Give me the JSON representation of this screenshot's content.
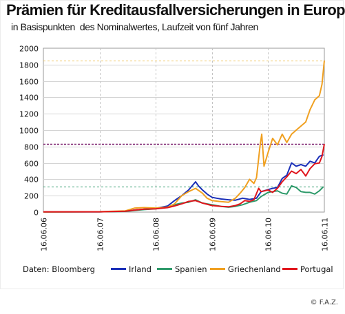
{
  "title": "Prämien für Kreditausfallversicherungen in Europa",
  "subtitle": "in Basispunkten  des Nominalwertes, Laufzeit von fünf Jahren",
  "source": "Daten: Bloomberg",
  "copyright": "© F.A.Z.",
  "chart_data": {
    "type": "line",
    "title": "Prämien für Kreditausfallversicherungen in Europa",
    "subtitle": "in Basispunkten  des Nominalwertes, Laufzeit von fünf Jahren",
    "xlabel": "",
    "ylabel": "",
    "xlim": [
      "2006-06-16",
      "2011-06-16"
    ],
    "ylim": [
      0,
      2000
    ],
    "y_ticks": [
      0,
      200,
      400,
      600,
      800,
      1000,
      1200,
      1400,
      1600,
      1800,
      2000
    ],
    "y_tick_labels": [
      "0",
      "200",
      "400",
      "600",
      "800",
      "1000",
      "1200",
      "1400",
      "1600",
      "1800",
      "2000"
    ],
    "x_ticks": [
      "2006-06-16",
      "2007-06-16",
      "2008-06-16",
      "2009-06-16",
      "2010-06-16",
      "2011-06-16"
    ],
    "x_tick_labels": [
      "16.06.06",
      "16.06.07",
      "16.06.08",
      "16.06.09",
      "16.06.10",
      "16.06.11"
    ],
    "grid": true,
    "legend_position": "bottom",
    "reference_lines": [
      {
        "value": 1850,
        "color": "#f0c45a"
      },
      {
        "value": 830,
        "color": "#7a1f6e"
      },
      {
        "value": 310,
        "color": "#2e9a6a"
      }
    ],
    "series": [
      {
        "name": "Irland",
        "color": "#1a2fb8",
        "points": [
          [
            "2006-06-16",
            2
          ],
          [
            "2007-06-16",
            3
          ],
          [
            "2007-12-01",
            10
          ],
          [
            "2008-02-01",
            25
          ],
          [
            "2008-04-01",
            35
          ],
          [
            "2008-06-16",
            45
          ],
          [
            "2008-09-01",
            75
          ],
          [
            "2008-10-15",
            140
          ],
          [
            "2008-12-01",
            200
          ],
          [
            "2009-01-15",
            270
          ],
          [
            "2009-03-01",
            370
          ],
          [
            "2009-03-20",
            320
          ],
          [
            "2009-04-15",
            270
          ],
          [
            "2009-05-15",
            220
          ],
          [
            "2009-06-16",
            180
          ],
          [
            "2009-07-15",
            170
          ],
          [
            "2009-08-15",
            160
          ],
          [
            "2009-10-01",
            150
          ],
          [
            "2009-11-15",
            145
          ],
          [
            "2010-01-01",
            170
          ],
          [
            "2010-02-15",
            155
          ],
          [
            "2010-04-01",
            170
          ],
          [
            "2010-05-01",
            250
          ],
          [
            "2010-06-16",
            275
          ],
          [
            "2010-07-15",
            290
          ],
          [
            "2010-08-15",
            300
          ],
          [
            "2010-09-15",
            410
          ],
          [
            "2010-10-15",
            450
          ],
          [
            "2010-11-15",
            600
          ],
          [
            "2010-12-15",
            560
          ],
          [
            "2011-01-15",
            580
          ],
          [
            "2011-02-15",
            560
          ],
          [
            "2011-03-15",
            620
          ],
          [
            "2011-04-15",
            600
          ],
          [
            "2011-05-15",
            680
          ],
          [
            "2011-06-10",
            700
          ]
        ]
      },
      {
        "name": "Spanien",
        "color": "#2e9a6a",
        "points": [
          [
            "2006-06-16",
            2
          ],
          [
            "2007-06-16",
            3
          ],
          [
            "2007-12-01",
            8
          ],
          [
            "2008-02-01",
            20
          ],
          [
            "2008-04-01",
            30
          ],
          [
            "2008-06-16",
            40
          ],
          [
            "2008-09-01",
            60
          ],
          [
            "2008-10-15",
            90
          ],
          [
            "2008-12-01",
            110
          ],
          [
            "2009-01-15",
            120
          ],
          [
            "2009-03-01",
            150
          ],
          [
            "2009-04-15",
            110
          ],
          [
            "2009-06-16",
            90
          ],
          [
            "2009-08-15",
            70
          ],
          [
            "2009-10-01",
            60
          ],
          [
            "2009-11-15",
            70
          ],
          [
            "2010-01-01",
            90
          ],
          [
            "2010-02-15",
            120
          ],
          [
            "2010-04-01",
            140
          ],
          [
            "2010-05-01",
            190
          ],
          [
            "2010-06-16",
            240
          ],
          [
            "2010-07-15",
            250
          ],
          [
            "2010-08-15",
            260
          ],
          [
            "2010-09-15",
            230
          ],
          [
            "2010-10-15",
            220
          ],
          [
            "2010-11-15",
            320
          ],
          [
            "2010-12-15",
            300
          ],
          [
            "2011-01-15",
            250
          ],
          [
            "2011-02-15",
            240
          ],
          [
            "2011-03-15",
            240
          ],
          [
            "2011-04-15",
            220
          ],
          [
            "2011-05-15",
            260
          ],
          [
            "2011-06-10",
            310
          ]
        ]
      },
      {
        "name": "Griechenland",
        "color": "#f0a020",
        "points": [
          [
            "2006-06-16",
            2
          ],
          [
            "2007-06-16",
            5
          ],
          [
            "2007-12-01",
            15
          ],
          [
            "2008-02-01",
            50
          ],
          [
            "2008-04-01",
            55
          ],
          [
            "2008-06-16",
            50
          ],
          [
            "2008-09-01",
            60
          ],
          [
            "2008-10-15",
            100
          ],
          [
            "2008-12-01",
            200
          ],
          [
            "2009-01-15",
            250
          ],
          [
            "2009-03-01",
            290
          ],
          [
            "2009-04-15",
            230
          ],
          [
            "2009-05-15",
            170
          ],
          [
            "2009-06-16",
            140
          ],
          [
            "2009-08-01",
            130
          ],
          [
            "2009-10-01",
            120
          ],
          [
            "2009-11-15",
            170
          ],
          [
            "2009-12-15",
            230
          ],
          [
            "2010-01-15",
            300
          ],
          [
            "2010-02-15",
            400
          ],
          [
            "2010-03-15",
            350
          ],
          [
            "2010-04-01",
            420
          ],
          [
            "2010-04-25",
            820
          ],
          [
            "2010-05-05",
            950
          ],
          [
            "2010-05-20",
            560
          ],
          [
            "2010-06-16",
            730
          ],
          [
            "2010-07-15",
            900
          ],
          [
            "2010-08-15",
            820
          ],
          [
            "2010-09-15",
            950
          ],
          [
            "2010-10-15",
            850
          ],
          [
            "2010-11-15",
            950
          ],
          [
            "2010-12-15",
            1000
          ],
          [
            "2011-01-15",
            1050
          ],
          [
            "2011-02-15",
            1100
          ],
          [
            "2011-03-15",
            1250
          ],
          [
            "2011-04-15",
            1370
          ],
          [
            "2011-05-15",
            1420
          ],
          [
            "2011-06-01",
            1560
          ],
          [
            "2011-06-16",
            1850
          ]
        ]
      },
      {
        "name": "Portugal",
        "color": "#e0151c",
        "points": [
          [
            "2006-06-16",
            3
          ],
          [
            "2007-06-16",
            3
          ],
          [
            "2007-12-01",
            10
          ],
          [
            "2008-02-01",
            25
          ],
          [
            "2008-04-01",
            35
          ],
          [
            "2008-06-16",
            40
          ],
          [
            "2008-09-01",
            55
          ],
          [
            "2008-10-15",
            75
          ],
          [
            "2008-12-01",
            100
          ],
          [
            "2009-01-15",
            130
          ],
          [
            "2009-03-01",
            140
          ],
          [
            "2009-04-15",
            110
          ],
          [
            "2009-06-16",
            80
          ],
          [
            "2009-08-15",
            70
          ],
          [
            "2009-10-01",
            65
          ],
          [
            "2009-11-15",
            80
          ],
          [
            "2009-12-15",
            100
          ],
          [
            "2010-01-15",
            140
          ],
          [
            "2010-02-15",
            130
          ],
          [
            "2010-03-15",
            150
          ],
          [
            "2010-04-15",
            290
          ],
          [
            "2010-05-01",
            250
          ],
          [
            "2010-06-16",
            270
          ],
          [
            "2010-07-15",
            240
          ],
          [
            "2010-08-15",
            290
          ],
          [
            "2010-09-15",
            370
          ],
          [
            "2010-10-15",
            430
          ],
          [
            "2010-11-15",
            500
          ],
          [
            "2010-12-15",
            470
          ],
          [
            "2011-01-15",
            520
          ],
          [
            "2011-02-15",
            440
          ],
          [
            "2011-03-15",
            530
          ],
          [
            "2011-04-15",
            590
          ],
          [
            "2011-05-15",
            600
          ],
          [
            "2011-06-01",
            680
          ],
          [
            "2011-06-16",
            830
          ]
        ]
      }
    ]
  }
}
